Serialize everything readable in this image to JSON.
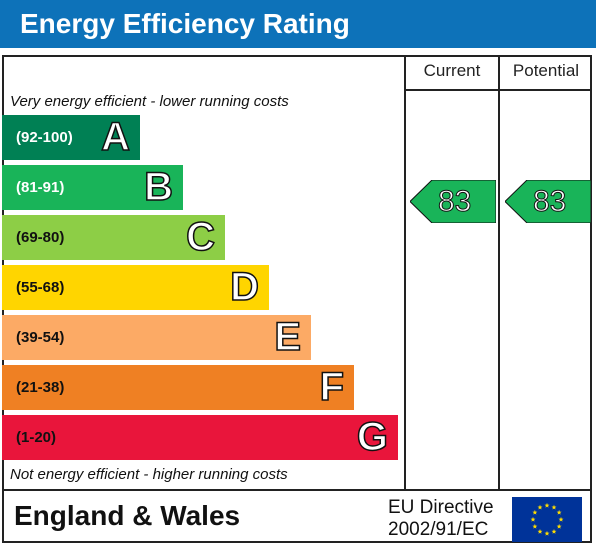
{
  "header": {
    "title": "Energy Efficiency Rating"
  },
  "columns": {
    "current": "Current",
    "potential": "Potential"
  },
  "captions": {
    "top": "Very energy efficient - lower running costs",
    "bottom": "Not energy efficient - higher running costs"
  },
  "bands": [
    {
      "range": "(92-100)",
      "letter": "A",
      "color": "#008054"
    },
    {
      "range": "(81-91)",
      "letter": "B",
      "color": "#19b459"
    },
    {
      "range": "(69-80)",
      "letter": "C",
      "color": "#8dce46"
    },
    {
      "range": "(55-68)",
      "letter": "D",
      "color": "#ffd500"
    },
    {
      "range": "(39-54)",
      "letter": "E",
      "color": "#fcaa65"
    },
    {
      "range": "(21-38)",
      "letter": "F",
      "color": "#ef8023"
    },
    {
      "range": "(1-20)",
      "letter": "G",
      "color": "#e9153b"
    }
  ],
  "ratings": {
    "current": {
      "value": "83",
      "color": "#19b459"
    },
    "potential": {
      "value": "83",
      "color": "#19b459"
    }
  },
  "footer": {
    "region": "England & Wales",
    "directive_line1": "EU Directive",
    "directive_line2": "2002/91/EC",
    "flag_icon": "eu-flag-icon",
    "flag_color": "#003399",
    "star_color": "#ffdd00"
  }
}
